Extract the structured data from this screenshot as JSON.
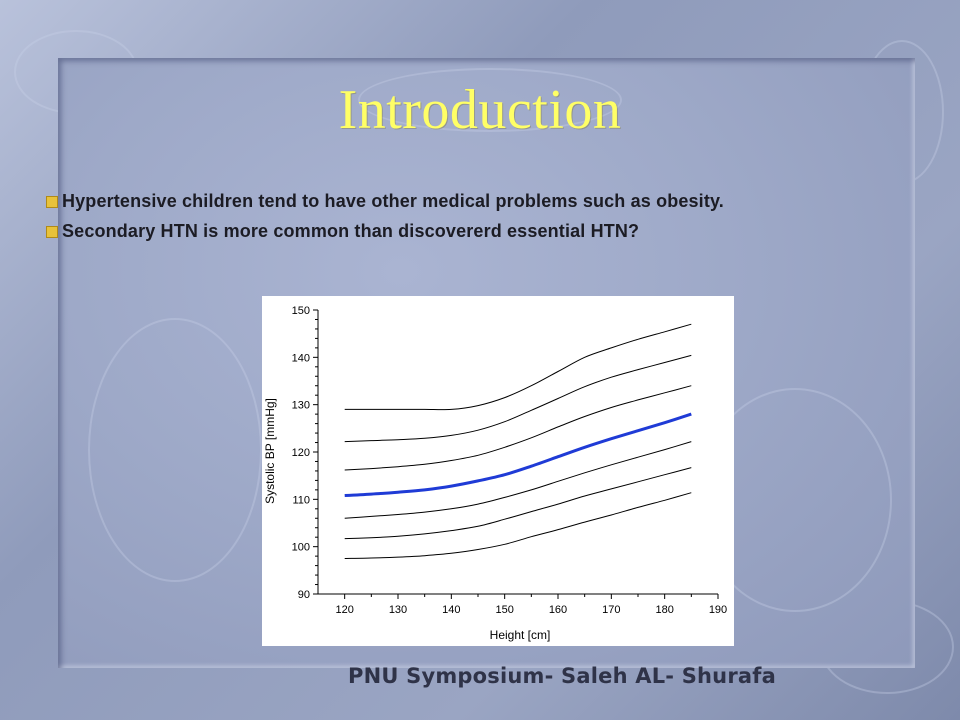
{
  "slide": {
    "title": "Introduction",
    "bullets": [
      {
        "text": "Hypertensive children tend to have other medical problems such as obesity."
      },
      {
        "text": "Secondary HTN is more common than discovererd essential HTN?"
      }
    ],
    "footer": "PNU Symposium- Saleh AL- Shurafa"
  },
  "colors": {
    "title": "#ffff66",
    "bullet_marker": "#e8c23a",
    "median_line": "#1f3bd6",
    "percentile_line": "#000000"
  },
  "chart_data": {
    "type": "line",
    "title": "",
    "xlabel": "Height [cm]",
    "ylabel": "Systolic BP [mmHg]",
    "xlim": [
      115,
      190
    ],
    "ylim": [
      90,
      150
    ],
    "xticks": [
      120,
      130,
      140,
      150,
      160,
      170,
      180,
      190
    ],
    "yticks": [
      90,
      100,
      110,
      120,
      130,
      140,
      150
    ],
    "grid": false,
    "x": [
      120,
      125,
      130,
      135,
      140,
      145,
      150,
      155,
      160,
      165,
      170,
      175,
      180,
      185
    ],
    "series": [
      {
        "values": [
          129.0,
          129.0,
          129.0,
          129.0,
          129.0,
          129.8,
          131.5,
          134.0,
          137.0,
          140.0,
          142.0,
          143.8,
          145.4,
          147.0
        ],
        "color": "#000000",
        "emphasis": false
      },
      {
        "values": [
          122.2,
          122.4,
          122.6,
          122.9,
          123.5,
          124.6,
          126.4,
          128.8,
          131.3,
          133.8,
          135.8,
          137.4,
          138.9,
          140.4
        ],
        "color": "#000000",
        "emphasis": false
      },
      {
        "values": [
          116.2,
          116.5,
          116.9,
          117.4,
          118.2,
          119.3,
          121.0,
          123.0,
          125.3,
          127.5,
          129.4,
          131.0,
          132.5,
          134.0
        ],
        "color": "#000000",
        "emphasis": false
      },
      {
        "values": [
          110.8,
          111.1,
          111.5,
          112.0,
          112.8,
          113.9,
          115.2,
          117.0,
          119.0,
          121.0,
          122.8,
          124.5,
          126.2,
          128.0
        ],
        "color": "#1f3bd6",
        "emphasis": true
      },
      {
        "values": [
          106.0,
          106.4,
          106.8,
          107.3,
          108.0,
          109.0,
          110.4,
          112.0,
          113.8,
          115.6,
          117.3,
          118.9,
          120.5,
          122.2
        ],
        "color": "#000000",
        "emphasis": false
      },
      {
        "values": [
          101.7,
          101.9,
          102.2,
          102.7,
          103.4,
          104.3,
          105.8,
          107.4,
          109.0,
          110.7,
          112.2,
          113.7,
          115.2,
          116.7
        ],
        "color": "#000000",
        "emphasis": false
      },
      {
        "values": [
          97.5,
          97.6,
          97.8,
          98.1,
          98.6,
          99.4,
          100.5,
          102.1,
          103.6,
          105.2,
          106.7,
          108.3,
          109.8,
          111.4
        ],
        "color": "#000000",
        "emphasis": false
      }
    ]
  }
}
